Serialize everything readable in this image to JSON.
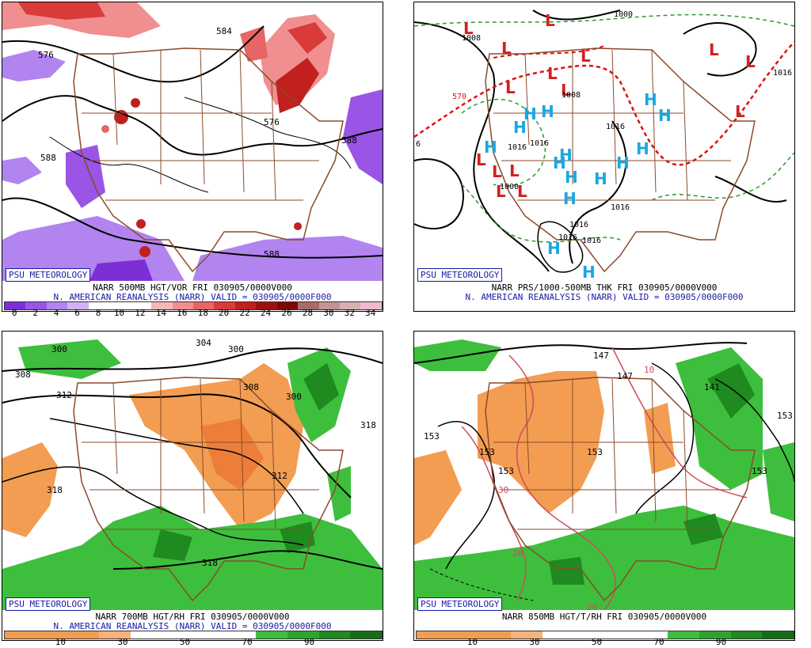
{
  "panels": [
    {
      "id": "tl",
      "badge": "PSU METEOROLOGY",
      "line1": "NARR 500MB HGT/VOR FRI 030905/0000V000",
      "line2": "N. AMERICAN REANALYSIS (NARR) VALID = 030905/0000F000",
      "contour_labels": [
        "576",
        "584",
        "588",
        "588",
        "588",
        "576"
      ],
      "scale": {
        "labels": [
          "0",
          "2",
          "4",
          "6",
          "8",
          "10",
          "12",
          "14",
          "16",
          "18",
          "20",
          "22",
          "24",
          "26",
          "28",
          "30",
          "32",
          "34"
        ],
        "colors": [
          "#7d2fd6",
          "#9a55e6",
          "#b184ef",
          "#cdb3f6",
          "#ffffff",
          "#ffffff",
          "#ffffff",
          "#f7b7b7",
          "#f08f8f",
          "#e76565",
          "#d93b3b",
          "#c21f1f",
          "#9e1010",
          "#7a0808",
          "#a86b6b",
          "#c49494",
          "#d8b0b0",
          "#f2b8d0"
        ]
      }
    },
    {
      "id": "tr",
      "badge": "PSU METEOROLOGY",
      "line1": "NARR PRS/1000-500MB THK FRI 030905/0000V000",
      "line2": "N. AMERICAN REANALYSIS (NARR) VALID = 030905/0000F000",
      "contour_labels": [
        "1008",
        "1000",
        "1008",
        "1016",
        "1016",
        "1016",
        "1016",
        "1016",
        "1016",
        "1016",
        "1016",
        "1000",
        "570",
        "6"
      ],
      "low_marker": "L",
      "high_marker": "H"
    },
    {
      "id": "bl",
      "badge": "PSU METEOROLOGY",
      "line1": "NARR 700MB HGT/RH FRI 030905/0000V000",
      "line2": "N. AMERICAN REANALYSIS (NARR) VALID = 030905/0000F000",
      "contour_labels": [
        "300",
        "300",
        "308",
        "312",
        "304",
        "308",
        "300",
        "318",
        "318",
        "312",
        "318"
      ],
      "scale": {
        "labels": [
          "10",
          "30",
          "50",
          "70",
          "90"
        ],
        "colors": [
          "#f29d52",
          "#f29d52",
          "#f29d52",
          "#f6b27a",
          "#ffffff",
          "#ffffff",
          "#ffffff",
          "#ffffff",
          "#3dbf3d",
          "#2ea42e",
          "#1f8a1f",
          "#166e16"
        ]
      }
    },
    {
      "id": "br",
      "badge": "PSU METEOROLOGY",
      "line1": "NARR 850MB HGT/T/RH FRI 030905/0000V000",
      "line2": "",
      "contour_labels": [
        "147",
        "147",
        "141",
        "153",
        "153",
        "153",
        "153",
        "153",
        "153",
        "10",
        "30",
        "20",
        "20"
      ],
      "scale": {
        "labels": [
          "10",
          "30",
          "50",
          "70",
          "90"
        ],
        "colors": [
          "#f29d52",
          "#f29d52",
          "#f29d52",
          "#f6b27a",
          "#ffffff",
          "#ffffff",
          "#ffffff",
          "#ffffff",
          "#3dbf3d",
          "#2ea42e",
          "#1f8a1f",
          "#166e16"
        ]
      }
    }
  ]
}
